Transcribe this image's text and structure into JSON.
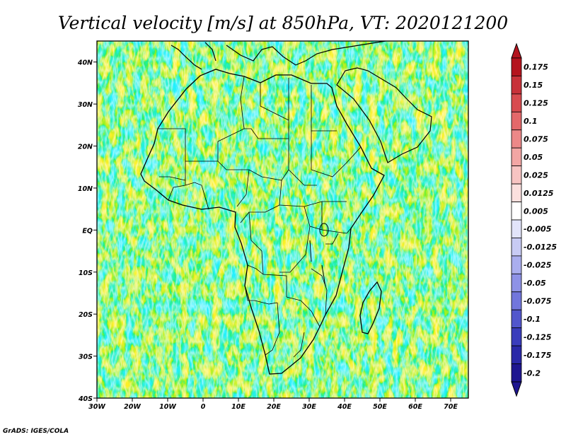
{
  "title": "Vertical velocity [m/s] at 850hPa, VT: 2020121200",
  "credit": "GrADS: IGES/COLA",
  "map": {
    "lat_ticks": [
      "40N",
      "30N",
      "20N",
      "10N",
      "EQ",
      "10S",
      "20S",
      "30S",
      "40S"
    ],
    "lon_ticks": [
      "30W",
      "20W",
      "10W",
      "0",
      "10E",
      "20E",
      "30E",
      "40E",
      "50E",
      "60E",
      "70E"
    ],
    "lat_values": [
      40,
      30,
      20,
      10,
      0,
      -10,
      -20,
      -30,
      -40
    ],
    "lon_values": [
      -30,
      -20,
      -10,
      0,
      10,
      20,
      30,
      40,
      50,
      60,
      70
    ],
    "lon_range": [
      -30,
      75
    ],
    "lat_range": [
      -40,
      45
    ]
  },
  "colorbar": {
    "labels": [
      "0.175",
      "0.15",
      "0.125",
      "0.1",
      "0.075",
      "0.05",
      "0.025",
      "0.0125",
      "0.005",
      "-0.005",
      "-0.0125",
      "-0.025",
      "-0.05",
      "-0.075",
      "-0.1",
      "-0.125",
      "-0.175",
      "-0.2"
    ],
    "colors": [
      "#b4141e",
      "#c8323a",
      "#d84c50",
      "#e4686a",
      "#ec8888",
      "#f2a6a4",
      "#f7c4c2",
      "#fbe0de",
      "#ffffff",
      "#e2e4fa",
      "#c8cbf4",
      "#aaaeee",
      "#8e92e6",
      "#7276dc",
      "#5256cc",
      "#3a3cbc",
      "#2a28a8",
      "#1e1690"
    ]
  }
}
